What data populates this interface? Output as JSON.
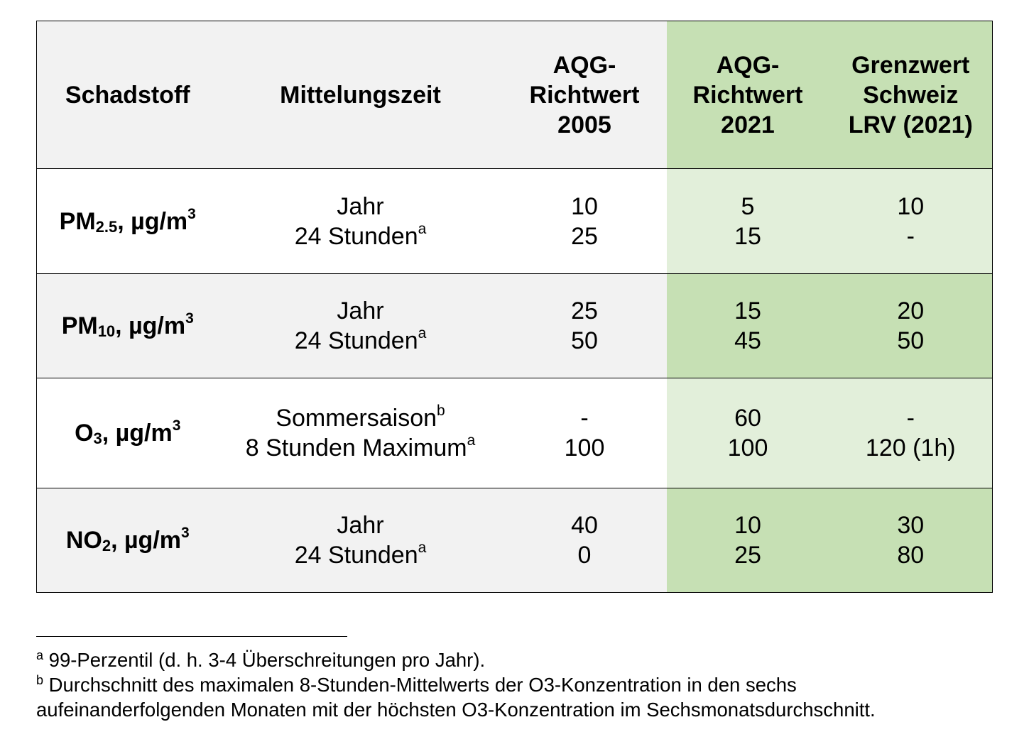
{
  "table": {
    "headers": {
      "pollutant": "Schadstoff",
      "period": "Mittelungszeit",
      "aqg2005": [
        "AQG-",
        "Richtwert",
        "2005"
      ],
      "aqg2021": [
        "AQG-",
        "Richtwert",
        "2021"
      ],
      "limit_ch": [
        "Grenzwert",
        "Schweiz",
        "LRV (2021)"
      ]
    },
    "rows": [
      {
        "pollutant": {
          "base": "PM",
          "sub": "2.5",
          "unit": ", µg/m",
          "sup": "3"
        },
        "periods": [
          {
            "text": "Jahr",
            "note": ""
          },
          {
            "text": "24 Stunden",
            "note": "a"
          }
        ],
        "aqg2005": [
          "10",
          "25"
        ],
        "aqg2021": [
          "5",
          "15"
        ],
        "limit_ch": [
          "10",
          "-"
        ]
      },
      {
        "pollutant": {
          "base": "PM",
          "sub": "10",
          "unit": ", µg/m",
          "sup": "3"
        },
        "periods": [
          {
            "text": "Jahr",
            "note": ""
          },
          {
            "text": "24 Stunden",
            "note": "a"
          }
        ],
        "aqg2005": [
          "25",
          "50"
        ],
        "aqg2021": [
          "15",
          "45"
        ],
        "limit_ch": [
          "20",
          "50"
        ]
      },
      {
        "pollutant": {
          "base": "O",
          "sub": "3",
          "unit": ", µg/m",
          "sup": "3"
        },
        "periods": [
          {
            "text": "Sommersaison",
            "note": "b"
          },
          {
            "text": "8 Stunden Maximum",
            "note": "a"
          }
        ],
        "aqg2005": [
          "-",
          "100"
        ],
        "aqg2021": [
          "60",
          "100"
        ],
        "limit_ch": [
          "-",
          "120 (1h)"
        ]
      },
      {
        "pollutant": {
          "base": "NO",
          "sub": "2",
          "unit": ", µg/m",
          "sup": "3"
        },
        "periods": [
          {
            "text": "Jahr",
            "note": ""
          },
          {
            "text": "24 Stunden",
            "note": "a"
          }
        ],
        "aqg2005": [
          "40",
          "0"
        ],
        "aqg2021": [
          "10",
          "25"
        ],
        "limit_ch": [
          "30",
          "80"
        ]
      }
    ]
  },
  "footnotes": [
    {
      "marker": "a",
      "text": " 99-Perzentil (d. h. 3-4 Überschreitungen pro Jahr)."
    },
    {
      "marker": "b",
      "text": " Durchschnitt des maximalen 8-Stunden-Mittelwerts der O3-Konzentration in den sechs aufeinanderfolgenden Monaten mit der höchsten O3-Konzentration im Sechsmonatsdurchschnitt."
    }
  ],
  "colors": {
    "header_grey": "#f2f2f2",
    "green": "#c6e0b4",
    "light_green": "#e2efda"
  }
}
